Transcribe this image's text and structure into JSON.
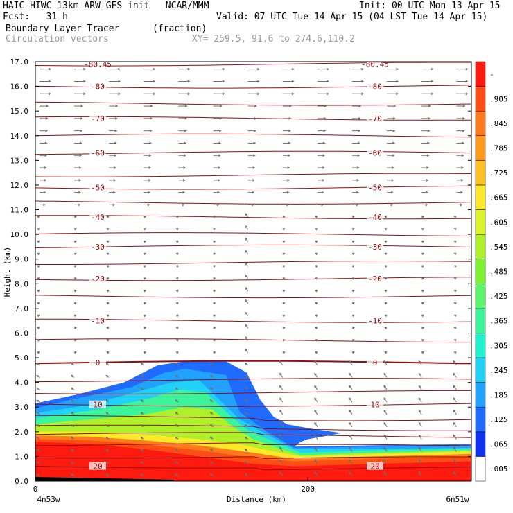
{
  "header": {
    "title_left": "HAIC-HIWC 13km ARW-GFS init   NCAR/MMM",
    "init": "Init: 00 UTC Mon 13 Apr 15",
    "fcst": "Fcst:   31 h",
    "valid": "Valid: 07 UTC Tue 14 Apr 15 (04 LST Tue 14 Apr 15)",
    "field": "Boundary Layer Tracer",
    "units": "(fraction)",
    "vectors": "Circulation vectors",
    "xy": "XY= 259.5, 91.6 to 274.6,110.2"
  },
  "chart_data": {
    "type": "heatmap",
    "ylabel": "Height (km)",
    "xlabel": "Distance (km)",
    "x_left_label": "4n53w",
    "x_right_label": "6n51w",
    "x_ticks": [
      {
        "value": 0,
        "label": "0"
      },
      {
        "value": 200,
        "label": "200"
      }
    ],
    "xlim": [
      0,
      320
    ],
    "ylim": [
      0,
      17
    ],
    "y_ticks": [
      "0.0",
      "1.0",
      "2.0",
      "3.0",
      "4.0",
      "5.0",
      "6.0",
      "7.0",
      "8.0",
      "9.0",
      "10.0",
      "11.0",
      "12.0",
      "13.0",
      "14.0",
      "15.0",
      "16.0",
      "17.0"
    ],
    "colorbar": {
      "labels": [
        ".005",
        ".065",
        ".125",
        ".185",
        ".245",
        ".305",
        ".365",
        ".425",
        ".485",
        ".545",
        ".605",
        ".665",
        ".725",
        ".785",
        ".845",
        ".905",
        "-"
      ],
      "colors": [
        "#ffffff",
        "#1030f0",
        "#1f6bff",
        "#21a2ff",
        "#20d2f5",
        "#1ef2cf",
        "#3cf59a",
        "#5df56a",
        "#7ff22f",
        "#aef02a",
        "#dcf22a",
        "#fde82a",
        "#ffc025",
        "#ff9a1f",
        "#ff7a1a",
        "#ff4e15",
        "#ff1a10"
      ]
    },
    "temperature_contours": [
      {
        "z": 0.6,
        "label": "20"
      },
      {
        "z": 1.0,
        "label": ""
      },
      {
        "z": 1.5,
        "label": ""
      },
      {
        "z": 1.9,
        "label": ""
      },
      {
        "z": 2.2,
        "label": ""
      },
      {
        "z": 2.6,
        "label": ""
      },
      {
        "z": 3.1,
        "label": "10"
      },
      {
        "z": 3.6,
        "label": ""
      },
      {
        "z": 4.1,
        "label": ""
      },
      {
        "z": 4.8,
        "label": "0"
      },
      {
        "z": 5.7,
        "label": ""
      },
      {
        "z": 6.5,
        "label": "-10"
      },
      {
        "z": 7.5,
        "label": ""
      },
      {
        "z": 8.2,
        "label": "-20"
      },
      {
        "z": 8.85,
        "label": ""
      },
      {
        "z": 9.5,
        "label": "-30"
      },
      {
        "z": 10.0,
        "label": ""
      },
      {
        "z": 10.7,
        "label": "-40"
      },
      {
        "z": 11.3,
        "label": ""
      },
      {
        "z": 11.9,
        "label": "-50"
      },
      {
        "z": 12.4,
        "label": ""
      },
      {
        "z": 13.3,
        "label": "-60"
      },
      {
        "z": 14.0,
        "label": ""
      },
      {
        "z": 14.7,
        "label": "-70"
      },
      {
        "z": 15.3,
        "label": ""
      },
      {
        "z": 16.0,
        "label": "-80"
      },
      {
        "z": 16.9,
        "label": "-80.45"
      }
    ],
    "tracer_regions": [
      {
        "value": 0.95,
        "top": [
          [
            0,
            1.6
          ],
          [
            40,
            1.5
          ],
          [
            80,
            1.3
          ],
          [
            120,
            1.0
          ],
          [
            160,
            0.7
          ],
          [
            190,
            0.6
          ],
          [
            250,
            0.7
          ],
          [
            320,
            0.8
          ]
        ]
      },
      {
        "value": 0.85,
        "top": [
          [
            0,
            1.7
          ],
          [
            40,
            1.65
          ],
          [
            80,
            1.5
          ],
          [
            120,
            1.25
          ],
          [
            160,
            0.95
          ],
          [
            190,
            0.8
          ],
          [
            250,
            0.9
          ],
          [
            320,
            1.0
          ]
        ]
      },
      {
        "value": 0.75,
        "top": [
          [
            0,
            1.85
          ],
          [
            40,
            1.8
          ],
          [
            80,
            1.65
          ],
          [
            120,
            1.45
          ],
          [
            160,
            1.15
          ],
          [
            190,
            0.9
          ],
          [
            250,
            1.0
          ],
          [
            320,
            1.1
          ]
        ]
      },
      {
        "value": 0.6,
        "top": [
          [
            0,
            2.0
          ],
          [
            40,
            2.0
          ],
          [
            80,
            1.9
          ],
          [
            120,
            1.7
          ],
          [
            150,
            1.5
          ],
          [
            175,
            1.2
          ],
          [
            195,
            1.0
          ],
          [
            250,
            1.1
          ],
          [
            320,
            1.2
          ]
        ]
      },
      {
        "value": 0.45,
        "top": [
          [
            0,
            2.3
          ],
          [
            40,
            2.5
          ],
          [
            80,
            2.7
          ],
          [
            110,
            3.0
          ],
          [
            130,
            2.9
          ],
          [
            145,
            2.2
          ],
          [
            160,
            1.7
          ],
          [
            180,
            1.3
          ],
          [
            195,
            1.05
          ],
          [
            250,
            1.15
          ],
          [
            320,
            1.25
          ]
        ]
      },
      {
        "value": 0.3,
        "top": [
          [
            0,
            2.55
          ],
          [
            40,
            2.85
          ],
          [
            80,
            3.3
          ],
          [
            105,
            3.7
          ],
          [
            125,
            3.6
          ],
          [
            140,
            2.8
          ],
          [
            155,
            2.1
          ],
          [
            175,
            1.6
          ],
          [
            195,
            1.15
          ],
          [
            250,
            1.25
          ],
          [
            320,
            1.3
          ]
        ]
      },
      {
        "value": 0.2,
        "top": [
          [
            0,
            2.75
          ],
          [
            40,
            3.1
          ],
          [
            80,
            3.7
          ],
          [
            100,
            4.0
          ],
          [
            120,
            4.1
          ],
          [
            135,
            3.3
          ],
          [
            150,
            2.5
          ],
          [
            170,
            1.9
          ],
          [
            190,
            1.3
          ],
          [
            250,
            1.3
          ],
          [
            320,
            1.35
          ]
        ]
      },
      {
        "value": 0.1,
        "top": [
          [
            0,
            2.95
          ],
          [
            30,
            3.35
          ],
          [
            70,
            3.8
          ],
          [
            95,
            4.4
          ],
          [
            110,
            4.55
          ],
          [
            140,
            4.3
          ],
          [
            150,
            2.8
          ],
          [
            170,
            2.0
          ],
          [
            190,
            1.35
          ],
          [
            250,
            1.4
          ],
          [
            320,
            1.45
          ]
        ]
      },
      {
        "value": 0.03,
        "top": [
          [
            0,
            3.15
          ],
          [
            30,
            3.5
          ],
          [
            65,
            4.0
          ],
          [
            90,
            4.7
          ],
          [
            110,
            4.85
          ],
          [
            140,
            4.85
          ],
          [
            155,
            4.4
          ],
          [
            165,
            3.3
          ],
          [
            175,
            2.6
          ],
          [
            185,
            2.3
          ],
          [
            205,
            2.1
          ],
          [
            225,
            1.95
          ],
          [
            215,
            1.85
          ],
          [
            200,
            1.7
          ],
          [
            195,
            1.6
          ],
          [
            190,
            1.4
          ],
          [
            250,
            1.45
          ],
          [
            320,
            1.5
          ]
        ]
      }
    ]
  }
}
